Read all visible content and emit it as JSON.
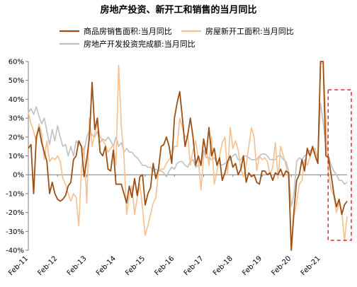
{
  "chart_data": {
    "type": "line",
    "title": "房地产投资、新开工和销售的当月同比",
    "xlabel": "",
    "ylabel": "",
    "x": [
      "2011-02",
      "2011-03",
      "2011-04",
      "2011-05",
      "2011-06",
      "2011-07",
      "2011-08",
      "2011-09",
      "2011-10",
      "2011-11",
      "2011-12",
      "2012-02",
      "2012-03",
      "2012-04",
      "2012-05",
      "2012-06",
      "2012-07",
      "2012-08",
      "2012-09",
      "2012-10",
      "2012-11",
      "2012-12",
      "2013-02",
      "2013-03",
      "2013-04",
      "2013-05",
      "2013-06",
      "2013-07",
      "2013-08",
      "2013-09",
      "2013-10",
      "2013-11",
      "2013-12",
      "2014-02",
      "2014-03",
      "2014-04",
      "2014-05",
      "2014-06",
      "2014-07",
      "2014-08",
      "2014-09",
      "2014-10",
      "2014-11",
      "2014-12",
      "2015-02",
      "2015-03",
      "2015-04",
      "2015-05",
      "2015-06",
      "2015-07",
      "2015-08",
      "2015-09",
      "2015-10",
      "2015-11",
      "2015-12",
      "2016-02",
      "2016-03",
      "2016-04",
      "2016-05",
      "2016-06",
      "2016-07",
      "2016-08",
      "2016-09",
      "2016-10",
      "2016-11",
      "2016-12",
      "2017-02",
      "2017-03",
      "2017-04",
      "2017-05",
      "2017-06",
      "2017-07",
      "2017-08",
      "2017-09",
      "2017-10",
      "2017-11",
      "2017-12",
      "2018-02",
      "2018-03",
      "2018-04",
      "2018-05",
      "2018-06",
      "2018-07",
      "2018-08",
      "2018-09",
      "2018-10",
      "2018-11",
      "2018-12",
      "2019-02",
      "2019-03",
      "2019-04",
      "2019-05",
      "2019-06",
      "2019-07",
      "2019-08",
      "2019-09",
      "2019-10",
      "2019-11",
      "2019-12",
      "2020-02",
      "2020-03",
      "2020-04",
      "2020-05",
      "2020-06",
      "2020-07",
      "2020-08",
      "2020-09",
      "2020-10",
      "2020-11",
      "2020-12",
      "2021-02",
      "2021-03",
      "2021-04",
      "2021-05",
      "2021-06",
      "2021-07",
      "2021-08",
      "2021-09",
      "2021-10",
      "2021-11",
      "2021-12"
    ],
    "x_tick_labels": [
      "Feb-11",
      "Feb-12",
      "Feb-13",
      "Feb-14",
      "Feb-15",
      "Feb-16",
      "Feb-17",
      "Feb-18",
      "Feb-19",
      "Feb-20",
      "Feb-21"
    ],
    "y_tick_labels": [
      "60%",
      "50%",
      "40%",
      "30%",
      "20%",
      "10%",
      "0%",
      "-10%",
      "-20%",
      "-30%",
      "-40%"
    ],
    "ylim": [
      -40,
      60
    ],
    "y_unit": "%",
    "grid": false,
    "legend_position": "top",
    "highlight": {
      "from": "2021-07",
      "to": "2021-12",
      "style": "dashed-box",
      "color": "#e8262b"
    },
    "series": [
      {
        "name": "商品房销售面积:当月同比",
        "color": "#9c4f15",
        "values": [
          14,
          16,
          -10,
          20,
          25,
          17,
          12,
          7,
          -10,
          -4,
          -10,
          -13,
          -14,
          -13,
          -11,
          -6,
          -4,
          8,
          10,
          18,
          15,
          -1,
          8,
          20,
          49,
          24,
          30,
          12,
          10,
          15,
          3,
          2,
          13,
          -5,
          -5,
          -5,
          -10,
          -15,
          -6,
          -12,
          -2,
          -11,
          -1,
          0,
          -16,
          -10,
          -7,
          6,
          -2,
          3,
          15,
          16,
          20,
          15,
          6,
          30,
          38,
          44,
          30,
          15,
          21,
          30,
          20,
          5,
          10,
          5,
          19,
          11,
          25,
          10,
          14,
          5,
          9,
          -3,
          1,
          7,
          10,
          4,
          6,
          0,
          3,
          10,
          -4,
          1,
          -1,
          0,
          -4,
          -5,
          2,
          2,
          0,
          1,
          -3,
          1,
          0,
          3,
          -1,
          2,
          1,
          -40,
          -19,
          -3,
          0,
          8,
          2,
          14,
          10,
          15,
          10,
          6,
          60,
          60,
          10,
          9,
          0,
          -10,
          -17,
          -13,
          -21,
          -16,
          -14
        ]
      },
      {
        "name": "房屋新开工面积:当月同比",
        "color": "#f6bf8f",
        "values": [
          33,
          27,
          23,
          17,
          27,
          22,
          8,
          18,
          7,
          9,
          8,
          10,
          7,
          -2,
          -5,
          -10,
          -14,
          -10,
          -12,
          -27,
          3,
          15,
          -15,
          30,
          15,
          22,
          27,
          20,
          18,
          16,
          12,
          14,
          16,
          5,
          58,
          26,
          10,
          -21,
          -11,
          -6,
          -21,
          -12,
          -5,
          -18,
          -32,
          -27,
          -21,
          -15,
          -12,
          2,
          3,
          3,
          6,
          8,
          10,
          15,
          15,
          30,
          25,
          20,
          21,
          5,
          13,
          18,
          8,
          -8,
          10,
          14,
          5,
          20,
          -5,
          2,
          10,
          17,
          20,
          0,
          25,
          14,
          18,
          13,
          3,
          -1,
          5,
          15,
          25,
          20,
          2,
          10,
          8,
          9,
          7,
          0,
          4,
          17,
          -2,
          15,
          10,
          5,
          -2,
          -41,
          -22,
          -15,
          -5,
          -3,
          8,
          5,
          9,
          13,
          14,
          6,
          59,
          59,
          30,
          1,
          -8,
          -11,
          -20,
          -15,
          -19,
          -35,
          -22
        ]
      },
      {
        "name": "房地产开发投资完成额:当月同比",
        "color": "#c0c0c0",
        "values": [
          33,
          35,
          32,
          36,
          31,
          27,
          30,
          23,
          16,
          24,
          18,
          26,
          20,
          15,
          16,
          10,
          15,
          10,
          18,
          16,
          15,
          12,
          20,
          24,
          21,
          20,
          23,
          17,
          19,
          18,
          20,
          18,
          15,
          20,
          15,
          17,
          12,
          14,
          12,
          12,
          10,
          9,
          7,
          5,
          5,
          4,
          4,
          2,
          3,
          2,
          2,
          1,
          -1,
          2,
          4,
          3,
          6,
          7,
          7,
          5,
          4,
          7,
          8,
          4,
          5,
          5,
          13,
          9,
          9,
          8,
          9,
          6,
          6,
          5,
          6,
          7,
          8,
          10,
          11,
          8,
          8,
          10,
          10,
          9,
          8,
          8,
          8,
          10,
          11,
          11,
          10,
          8,
          8,
          8,
          10,
          10,
          8,
          7,
          2,
          -17,
          -10,
          7,
          9,
          8,
          10,
          11,
          13,
          13,
          12,
          10,
          38,
          28,
          15,
          10,
          5,
          2,
          0,
          -3,
          -3,
          -5,
          -4
        ]
      }
    ]
  }
}
